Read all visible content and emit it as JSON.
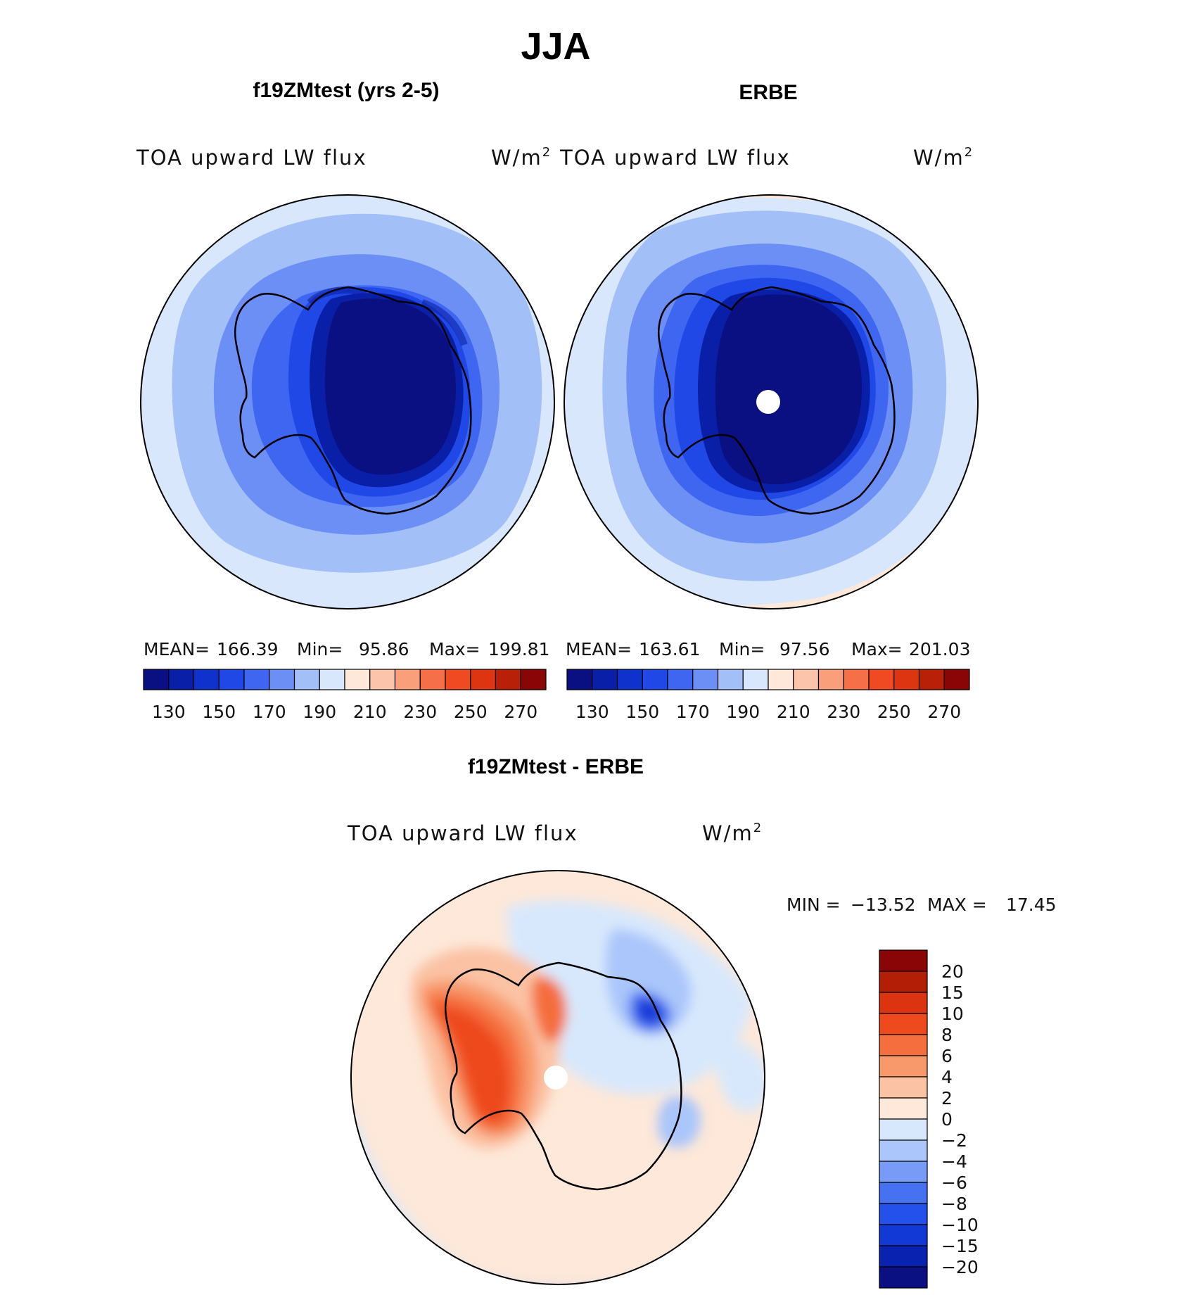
{
  "figure": {
    "season": "JJA",
    "colors": {
      "ocean_far": "#dbe9ff",
      "coast": "#000000"
    }
  },
  "panels": {
    "model": {
      "title": "f19ZMtest (yrs 2-5)",
      "variable": "TOA upward LW flux",
      "units": "W/m",
      "units_sup": "2",
      "stats": {
        "mean_label": "MEAN=",
        "mean": "166.39",
        "min_label": "Min=",
        "min": "95.86",
        "max_label": "Max=",
        "max": "199.81"
      }
    },
    "obs": {
      "title": "ERBE",
      "variable": "TOA upward LW flux",
      "units": "W/m",
      "units_sup": "2",
      "stats": {
        "mean_label": "MEAN=",
        "mean": "163.61",
        "min_label": "Min=",
        "min": "97.56",
        "max_label": "Max=",
        "max": "201.03"
      }
    },
    "diff": {
      "title": "f19ZMtest - ERBE",
      "variable": "TOA upward LW flux",
      "units": "W/m",
      "units_sup": "2",
      "stats": {
        "min_label": "MIN =",
        "min": "−13.52",
        "max_label": "MAX =",
        "max": "17.45"
      }
    }
  },
  "colorbars": {
    "flux": {
      "colors": [
        "#0a0f82",
        "#0a1fa8",
        "#0f32cc",
        "#1f48e6",
        "#3f66f0",
        "#6b8ff5",
        "#a2bff8",
        "#d8e7fb",
        "#fde8d9",
        "#fcc4aa",
        "#f9a07a",
        "#f57048",
        "#ef4a22",
        "#dd3412",
        "#b82008",
        "#8a0505"
      ],
      "labels": [
        "130",
        "150",
        "170",
        "190",
        "210",
        "230",
        "250",
        "270"
      ]
    },
    "diff": {
      "colors": [
        "#0a0f82",
        "#0a22b0",
        "#1238d6",
        "#2450ec",
        "#4672f2",
        "#779bf6",
        "#aac6fa",
        "#d8e8fc",
        "#fde8d9",
        "#fbc2a4",
        "#f8996c",
        "#f46e3e",
        "#ee4a1e",
        "#dc3410",
        "#b21e06",
        "#8a0505"
      ],
      "labels": [
        "20",
        "15",
        "10",
        "8",
        "6",
        "4",
        "2",
        "0",
        "−2",
        "−4",
        "−6",
        "−8",
        "−10",
        "−15",
        "−20"
      ]
    }
  }
}
